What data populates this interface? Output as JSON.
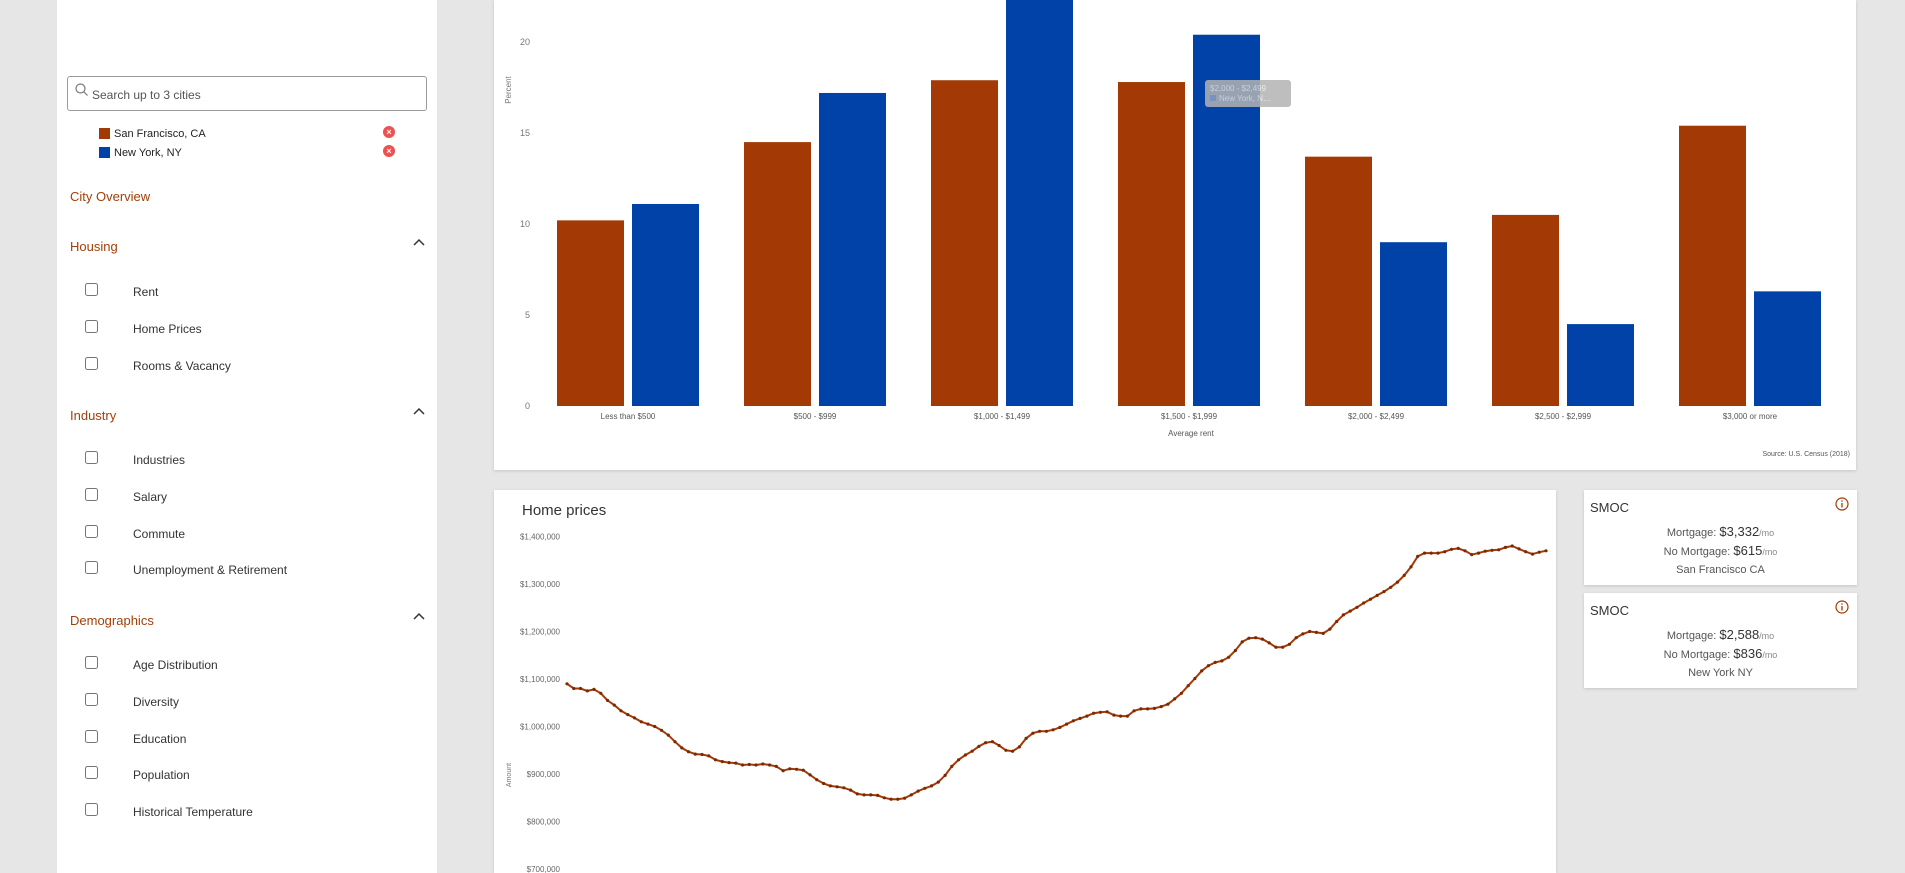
{
  "sidebar": {
    "search": {
      "placeholder": "Search up to 3 cities"
    },
    "cities": [
      {
        "name": "San Francisco, CA",
        "color": "#a33a05"
      },
      {
        "name": "New York, NY",
        "color": "#0142a8"
      }
    ],
    "city_overview": "City Overview",
    "sections": [
      {
        "title": "Housing",
        "items": [
          "Rent",
          "Home Prices",
          "Rooms & Vacancy"
        ]
      },
      {
        "title": "Industry",
        "items": [
          "Industries",
          "Salary",
          "Commute",
          "Unemployment & Retirement"
        ]
      },
      {
        "title": "Demographics",
        "items": [
          "Age Distribution",
          "Diversity",
          "Education",
          "Population",
          "Historical Temperature"
        ]
      }
    ]
  },
  "rent_chart": {
    "chart_data": {
      "type": "bar",
      "categories": [
        "Less than $500",
        "$500 - $999",
        "$1,000 - $1,499",
        "$1,500 - $1,999",
        "$2,000 - $2,499",
        "$2,500 - $2,999",
        "$3,000 or more"
      ],
      "series": [
        {
          "name": "San Francisco, CA",
          "color": "#a33a05",
          "values": [
            10.2,
            14.5,
            17.9,
            17.8,
            13.7,
            10.5,
            15.4
          ]
        },
        {
          "name": "New York, NY",
          "color": "#0142a8",
          "values": [
            11.1,
            17.2,
            22.5,
            20.4,
            9.0,
            4.5,
            6.3
          ]
        }
      ],
      "yticks": [
        0,
        5,
        10,
        15,
        20
      ],
      "ylabel": "Percent",
      "xlabel": "Average rent",
      "source": "Source: U.S. Census (2018)",
      "tooltip": {
        "line1": "$2,000 - $2,499",
        "line2": "New York, N…"
      }
    }
  },
  "home_chart": {
    "title": "Home prices",
    "chart_data": {
      "type": "line",
      "ylabel": "Amount",
      "yticks": [
        "$700,000",
        "$800,000",
        "$900,000",
        "$1,000,000",
        "$1,100,000",
        "$1,200,000",
        "$1,300,000",
        "$1,400,000"
      ],
      "ylim": [
        700000,
        1400000
      ],
      "series": [
        {
          "name": "San Francisco, CA",
          "color": "#a33a05",
          "values": [
            1090000,
            1080000,
            1080000,
            1075000,
            1078000,
            1070000,
            1055000,
            1045000,
            1033000,
            1025000,
            1018000,
            1010000,
            1005000,
            1000000,
            992000,
            982000,
            968000,
            955000,
            947000,
            942000,
            941000,
            938000,
            930000,
            926000,
            924000,
            923000,
            919000,
            920000,
            919000,
            921000,
            919000,
            916000,
            907000,
            911000,
            910000,
            908000,
            898000,
            888000,
            880000,
            875000,
            873000,
            871000,
            866000,
            858000,
            856000,
            856000,
            855000,
            850000,
            847000,
            847000,
            849000,
            856000,
            864000,
            870000,
            875000,
            883000,
            897000,
            916000,
            930000,
            940000,
            948000,
            958000,
            966000,
            968000,
            960000,
            950000,
            948000,
            957000,
            975000,
            986000,
            990000,
            990000,
            993000,
            998000,
            1005000,
            1012000,
            1017000,
            1022000,
            1028000,
            1030000,
            1031000,
            1024000,
            1022000,
            1022000,
            1033000,
            1037000,
            1037000,
            1038000,
            1042000,
            1047000,
            1058000,
            1070000,
            1086000,
            1101000,
            1117000,
            1128000,
            1135000,
            1138000,
            1146000,
            1160000,
            1178000,
            1186000,
            1187000,
            1184000,
            1176000,
            1167000,
            1167000,
            1173000,
            1187000,
            1195000,
            1200000,
            1198000,
            1196000,
            1205000,
            1221000,
            1235000,
            1243000,
            1251000,
            1260000,
            1268000,
            1276000,
            1284000,
            1293000,
            1304000,
            1318000,
            1336000,
            1358000,
            1365000,
            1365000,
            1365000,
            1368000,
            1373000,
            1375000,
            1370000,
            1362000,
            1365000,
            1369000,
            1371000,
            1372000,
            1377000,
            1380000,
            1374000,
            1368000,
            1363000,
            1367000,
            1370000
          ]
        }
      ]
    }
  },
  "smoc": [
    {
      "title": "SMOC",
      "mortgage_label": "Mortgage:",
      "mortgage_value": "$3,332",
      "no_mortgage_label": "No Mortgage:",
      "no_mortgage_value": "$615",
      "unit": "/mo",
      "city": "San Francisco CA"
    },
    {
      "title": "SMOC",
      "mortgage_label": "Mortgage:",
      "mortgage_value": "$2,588",
      "no_mortgage_label": "No Mortgage:",
      "no_mortgage_value": "$836",
      "unit": "/mo",
      "city": "New York NY"
    }
  ]
}
